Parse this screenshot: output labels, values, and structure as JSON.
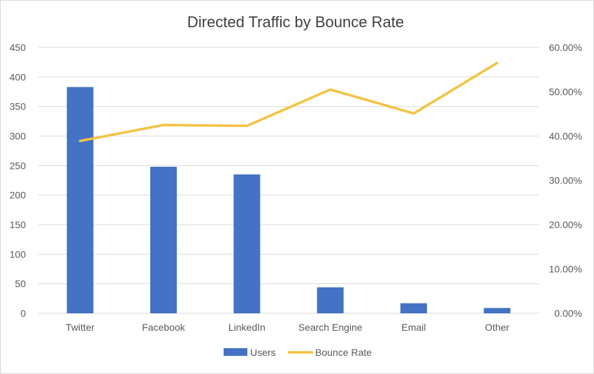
{
  "chart_data": {
    "type": "bar",
    "title": "Directed Traffic by Bounce Rate",
    "categories": [
      "Twitter",
      "Facebook",
      "LinkedIn",
      "Search Engine",
      "Email",
      "Other"
    ],
    "series": [
      {
        "name": "Users",
        "type": "bar",
        "axis": "left",
        "color": "#4472c4",
        "values": [
          383,
          248,
          235,
          44,
          17,
          9
        ]
      },
      {
        "name": "Bounce Rate",
        "type": "line",
        "axis": "right",
        "color": "#f4c242",
        "values": [
          0.389,
          0.425,
          0.423,
          0.505,
          0.451,
          0.565
        ]
      }
    ],
    "y_left": {
      "min": 0,
      "max": 450,
      "ticks": [
        "0",
        "50",
        "100",
        "150",
        "200",
        "250",
        "300",
        "350",
        "400",
        "450"
      ]
    },
    "y_right": {
      "min": 0,
      "max": 0.6,
      "ticks": [
        "0.00%",
        "10.00%",
        "20.00%",
        "30.00%",
        "40.00%",
        "50.00%",
        "60.00%"
      ]
    },
    "grid": true,
    "legend": "bottom"
  }
}
